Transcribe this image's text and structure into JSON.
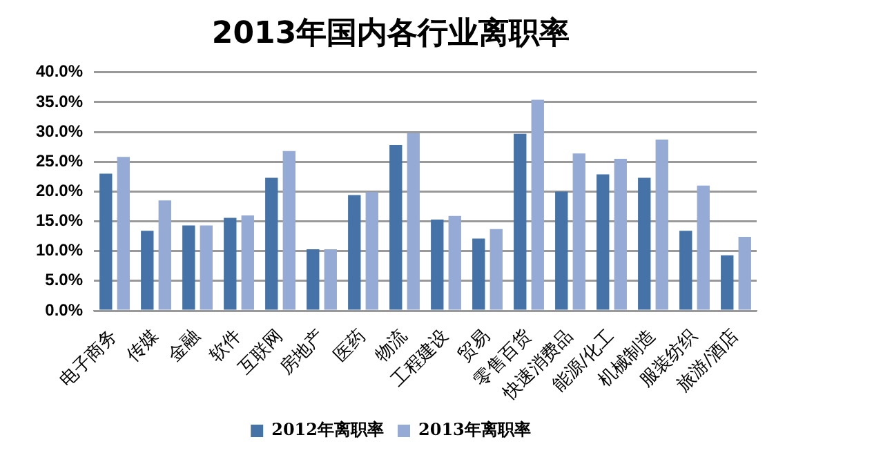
{
  "chart_data": {
    "type": "bar",
    "title": "2013年国内各行业离职率",
    "categories": [
      "电子商务",
      "传媒",
      "金融",
      "软件",
      "互联网",
      "房地产",
      "医药",
      "物流",
      "工程建设",
      "贸易",
      "零售百货",
      "快速消费品",
      "能源/化工",
      "机械制造",
      "服装纺织",
      "旅游/酒店"
    ],
    "series": [
      {
        "name": "2012年离职率",
        "color": "#4572a7",
        "values": [
          23.0,
          13.4,
          14.3,
          15.6,
          22.3,
          10.3,
          19.4,
          27.8,
          15.3,
          12.1,
          29.7,
          20.0,
          22.9,
          22.3,
          13.4,
          9.3
        ]
      },
      {
        "name": "2013年离职率",
        "color": "#95abd5",
        "values": [
          25.8,
          18.5,
          14.3,
          16.0,
          26.8,
          10.3,
          19.9,
          29.8,
          15.9,
          13.7,
          35.4,
          26.4,
          25.5,
          28.7,
          21.0,
          12.4
        ]
      }
    ],
    "ylim": [
      0,
      40
    ],
    "yticks": [
      {
        "value": 0,
        "label": "0.0%"
      },
      {
        "value": 5,
        "label": "5.0%"
      },
      {
        "value": 10,
        "label": "10.0%"
      },
      {
        "value": 15,
        "label": "15.0%"
      },
      {
        "value": 20,
        "label": "20.0%"
      },
      {
        "value": 25,
        "label": "25.0%"
      },
      {
        "value": 30,
        "label": "30.0%"
      },
      {
        "value": 35,
        "label": "35.0%"
      },
      {
        "value": 40,
        "label": "40.0%"
      }
    ],
    "grid": "y",
    "legend": "bottom"
  }
}
